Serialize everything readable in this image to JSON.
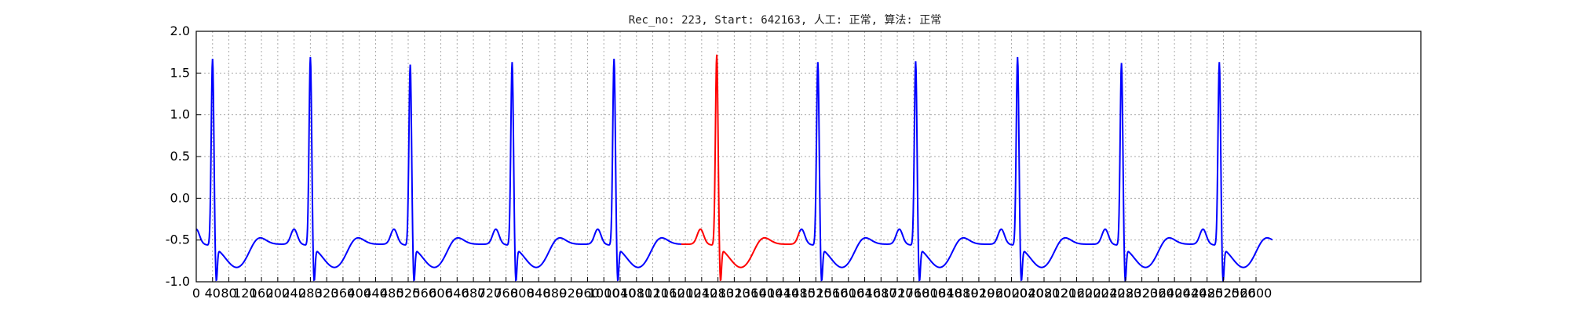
{
  "chart_data": {
    "type": "line",
    "title": "Rec_no: 223, Start: 642163, 人工: 正常, 算法: 正常",
    "xlabel": "",
    "ylabel": "",
    "xlim": [
      0,
      1000
    ],
    "ylim": [
      -1.0,
      2.0
    ],
    "grid": true,
    "y_ticks": [
      "-1.0",
      "-0.5",
      "0.0",
      "0.5",
      "1.0",
      "1.5",
      "2.0"
    ],
    "y_tick_values": [
      -1.0,
      -0.5,
      0.0,
      0.5,
      1.0,
      1.5,
      2.0
    ],
    "x_tick_values": [
      0,
      40,
      80,
      120,
      160,
      200,
      240,
      280,
      320,
      360,
      400,
      440,
      480,
      520,
      560,
      600,
      640,
      680,
      720,
      760,
      800,
      840,
      880,
      920,
      960,
      1000,
      1040,
      1080,
      1120,
      1160,
      1200,
      1240,
      1280,
      1320,
      1360,
      1400,
      1440,
      1480,
      1520,
      1560,
      1600,
      1640,
      1680,
      1720,
      1760,
      1800,
      1840,
      1880,
      1920,
      1960,
      2000,
      2040,
      2080,
      2120,
      2160,
      2200,
      2240,
      2280,
      2320,
      2360,
      2400,
      2440,
      2480,
      2520,
      2560,
      2600
    ],
    "x_ticks": [
      "0",
      "40",
      "80",
      "120",
      "160",
      "200",
      "240",
      "280",
      "320",
      "360",
      "400",
      "440",
      "480",
      "520",
      "560",
      "600",
      "640",
      "680",
      "720",
      "760",
      "800",
      "840",
      "880",
      "920",
      "960",
      "1000",
      "1040",
      "1080",
      "1120",
      "1160",
      "1200",
      "1240",
      "1280",
      "1320",
      "1360",
      "1400",
      "1440",
      "1480",
      "1520",
      "1560",
      "1600",
      "1640",
      "1680",
      "1720",
      "1760",
      "1800",
      "1840",
      "1880",
      "1920",
      "1960",
      "2000",
      "2040",
      "2080",
      "2120",
      "2160",
      "2200",
      "2240",
      "2280",
      "2320",
      "2360",
      "2400",
      "2440",
      "2480",
      "2520",
      "2560",
      "2600"
    ],
    "x_data_max": 2640,
    "series": [
      {
        "color": "#0000ff",
        "x_start": 0,
        "x_end": 1190
      },
      {
        "color": "#ff0000",
        "x_start": 1190,
        "x_end": 1480
      },
      {
        "color": "#0000ff",
        "x_start": 1480,
        "x_end": 2640
      }
    ],
    "beats": [
      {
        "r_peak_x": 40,
        "r_amp": 1.7
      },
      {
        "r_peak_x": 280,
        "r_amp": 1.72
      },
      {
        "r_peak_x": 525,
        "r_amp": 1.63
      },
      {
        "r_peak_x": 775,
        "r_amp": 1.66
      },
      {
        "r_peak_x": 1025,
        "r_amp": 1.7
      },
      {
        "r_peak_x": 1277,
        "r_amp": 1.75
      },
      {
        "r_peak_x": 1525,
        "r_amp": 1.66
      },
      {
        "r_peak_x": 1765,
        "r_amp": 1.67
      },
      {
        "r_peak_x": 2015,
        "r_amp": 1.72
      },
      {
        "r_peak_x": 2270,
        "r_amp": 1.65
      },
      {
        "r_peak_x": 2510,
        "r_amp": 1.66
      }
    ],
    "baseline": -0.55,
    "line_color": "#0000ff",
    "highlight_color": "#ff0000",
    "grid_color": "#aaaaaa"
  }
}
